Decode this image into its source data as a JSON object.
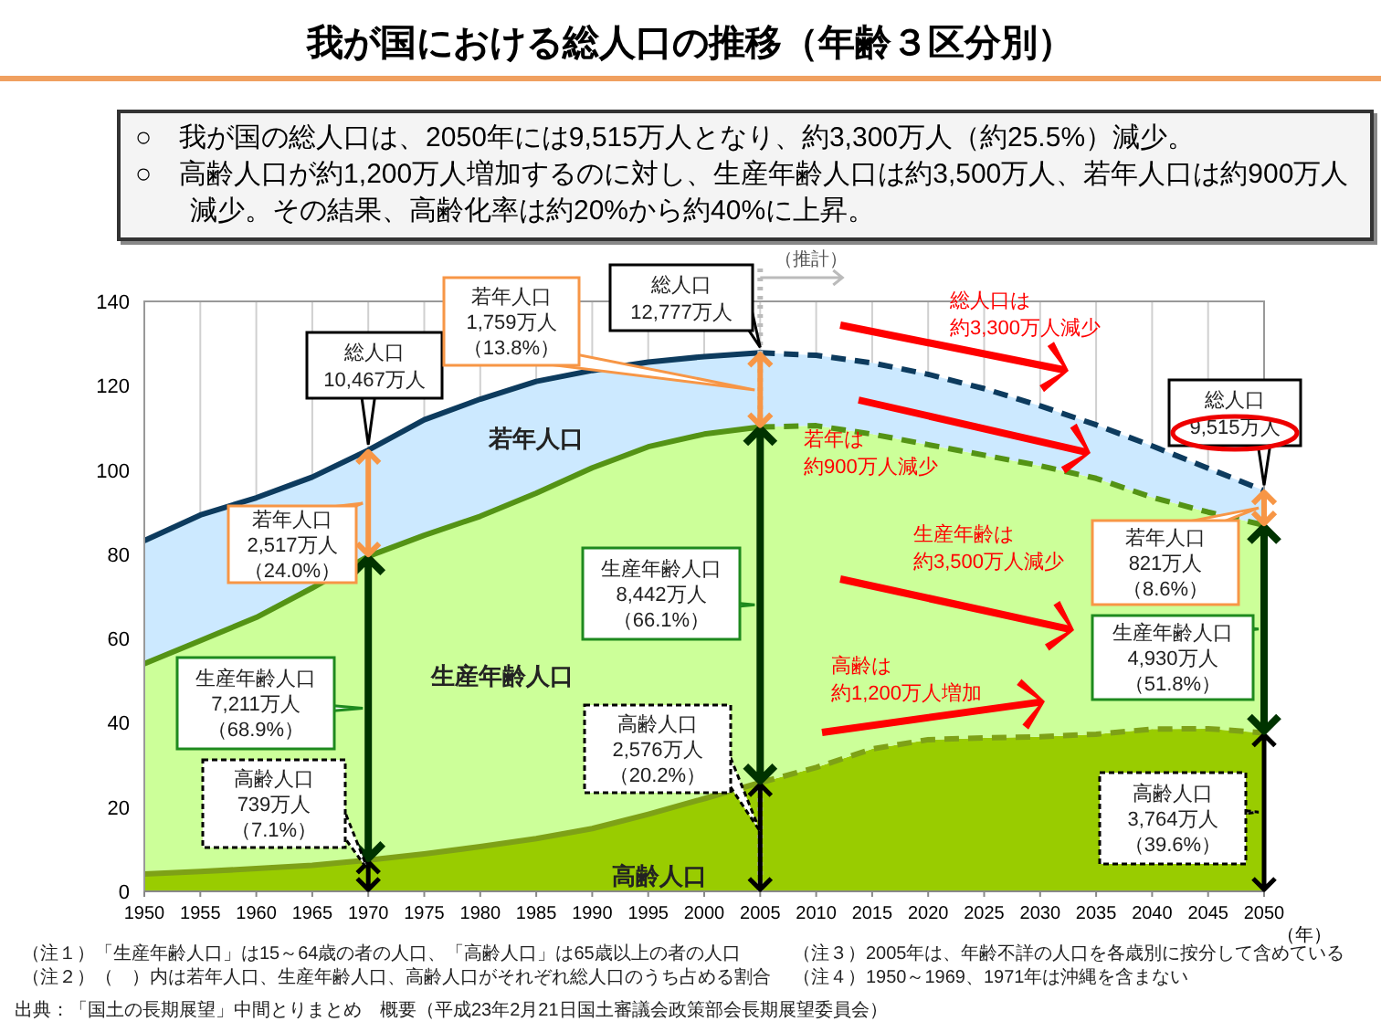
{
  "chart_data": {
    "type": "area",
    "title": "我が国における総人口の推移（年齢３区分別）",
    "subtitle": "○　我が国の総人口は、2050年には9,515万人となり、約3,300万人（約25.5%）減少。",
    "xlabel": "（年）",
    "stacked": true,
    "grid": "x",
    "x": [
      1950,
      1955,
      1960,
      1965,
      1970,
      1975,
      1980,
      1985,
      1990,
      1995,
      2000,
      2005,
      2010,
      2015,
      2020,
      2025,
      2030,
      2035,
      2040,
      2045,
      2050
    ],
    "xlim": [
      1950,
      2050
    ],
    "xticks": [
      1950,
      1955,
      1960,
      1965,
      1970,
      1975,
      1980,
      1985,
      1990,
      1995,
      2000,
      2005,
      2010,
      2015,
      2020,
      2025,
      2030,
      2035,
      2040,
      2045,
      2050
    ],
    "ylim": [
      0,
      140
    ],
    "yticks": [
      0,
      20,
      40,
      60,
      80,
      100,
      120,
      140
    ],
    "series": [
      {
        "name": "高齢人口",
        "color": "#99cc00",
        "values": [
          4.1,
          4.7,
          5.4,
          6.2,
          7.4,
          8.9,
          10.6,
          12.5,
          14.9,
          18.3,
          22.0,
          25.8,
          29.4,
          33.8,
          36.0,
          36.4,
          36.7,
          37.3,
          38.5,
          38.6,
          37.6
        ]
      },
      {
        "name": "生産年齢人口",
        "color": "#ccff99",
        "values": [
          49.9,
          54.8,
          59.6,
          65.8,
          72.1,
          75.6,
          78.4,
          82.0,
          85.6,
          87.2,
          86.5,
          84.4,
          81.1,
          74.7,
          70.0,
          67.1,
          64.3,
          60.7,
          55.0,
          51.4,
          49.3
        ]
      },
      {
        "name": "若年人口",
        "color": "#cce9ff",
        "values": [
          29.2,
          29.8,
          28.4,
          26.3,
          25.2,
          27.4,
          27.8,
          26.5,
          23.1,
          20.1,
          18.4,
          17.6,
          16.7,
          16.9,
          16.7,
          15.8,
          14.2,
          12.7,
          12.2,
          10.4,
          8.2
        ]
      }
    ],
    "ref_lines": [
      {
        "axis": "x",
        "value": 2005,
        "label": "（推計）",
        "color": "#bbbbbb",
        "line_style": "dotted"
      }
    ],
    "annotations": [
      {
        "text": "総人口10,467万人",
        "x": 1970,
        "y": 104.7
      },
      "若年人口2,517万人（24.0%）",
      "生産年齢人口7,211万人（68.9%）",
      "高齢人口739万人（7.1%）",
      {
        "text": "総人口12,777万人",
        "x": 2005,
        "y": 127.8
      },
      "若年人口1,759万人（13.8%）",
      "生産年齢人口8,442万人（66.1%）",
      "高齢人口2,576万人（20.2%）",
      {
        "text": "総人口9,515万人",
        "x": 2050,
        "y": 95.1
      },
      "若年人口821万人（8.6%）",
      "生産年齢人口4,930万人（51.8%）",
      "高齢人口3,764万人（39.6%）",
      "○　高齢人口が約1,200万人増加するのに対し、生産年齢人口は約3,500万人、若年人口は約900万人減少。その結果、高齢化率は約20%から約40%に上昇。",
      "総人口は約3,300万人減少",
      "若年は約900万人減少",
      "生産年齢は約3,500万人減少",
      "高齢は約1,200万人増加",
      "（注１）「生産年齢人口」は15～64歳の者の人口、「高齢人口」は65歳以上の者の人口",
      "（注２）（　）内は若年人口、生産年齢人口、高齢人口がそれぞれ総人口のうち占める割合",
      "（注３）2005年は、年齢不詳の人口を各歳別に按分して含めている",
      "（注４）1950～1969、1971年は沖縄を含まない",
      "出典：「国土の長期展望」中間とりまとめ　概要（平成23年2月21日国土審議会政策部会長期展望委員会）"
    ]
  }
}
